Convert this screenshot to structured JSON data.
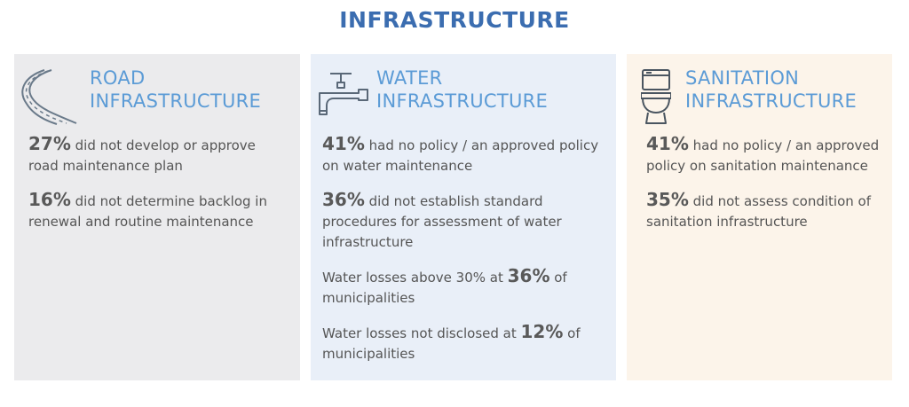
{
  "page": {
    "title": "INFRASTRUCTURE"
  },
  "panels": {
    "road": {
      "icon": "road-icon",
      "heading_line1": "ROAD",
      "heading_line2": "INFRASTRUCTURE",
      "stats": [
        {
          "num": "27%",
          "text": " did not develop or approve road maintenance plan"
        },
        {
          "num": "16%",
          "text": " did not determine backlog in renewal and routine maintenance"
        }
      ]
    },
    "water": {
      "icon": "water-tap-icon",
      "heading_line1": "WATER",
      "heading_line2": "INFRASTRUCTURE",
      "stats": [
        {
          "num": "41%",
          "text": " had no policy / an approved policy on water maintenance"
        },
        {
          "num": "36%",
          "text": " did not establish standard procedures for assessment of water infrastructure"
        },
        {
          "pre": "Water losses above 30% at ",
          "num": "36%",
          "post": " of municipalities"
        },
        {
          "pre": "Water losses not disclosed at ",
          "num": "12%",
          "post": " of municipalities"
        }
      ]
    },
    "sanitation": {
      "icon": "toilet-icon",
      "heading_line1": "SANITATION",
      "heading_line2": "INFRASTRUCTURE",
      "stats": [
        {
          "num": "41%",
          "text": " had no policy / an approved policy on sanitation maintenance"
        },
        {
          "num": "35%",
          "text": " did not assess condition of sanitation infrastructure"
        }
      ]
    }
  },
  "colors": {
    "title": "#3b6db0",
    "heading": "#5b9bd6",
    "road_bg": "#ebebed",
    "water_bg": "#e9eff8",
    "sanitation_bg": "#fcf4ea"
  }
}
